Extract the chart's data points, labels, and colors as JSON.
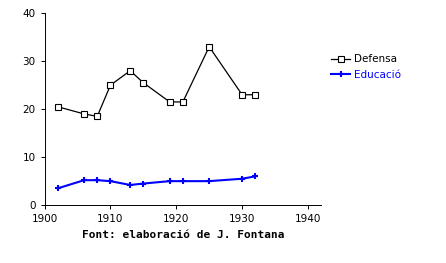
{
  "defensa_x": [
    1902,
    1906,
    1908,
    1910,
    1913,
    1915,
    1919,
    1921,
    1925,
    1930,
    1932
  ],
  "defensa_y": [
    20.5,
    19.0,
    18.5,
    25.0,
    28.0,
    25.5,
    21.5,
    21.5,
    33.0,
    23.0,
    23.0
  ],
  "educacio_x": [
    1902,
    1906,
    1908,
    1910,
    1913,
    1915,
    1919,
    1921,
    1925,
    1930,
    1932
  ],
  "educacio_y": [
    3.5,
    5.2,
    5.2,
    5.0,
    4.2,
    4.5,
    5.0,
    5.0,
    5.0,
    5.5,
    6.0
  ],
  "xlim": [
    1900,
    1942
  ],
  "ylim": [
    0,
    40
  ],
  "xticks": [
    1900,
    1910,
    1920,
    1930,
    1940
  ],
  "yticks": [
    0,
    10,
    20,
    30,
    40
  ],
  "legend_defensa": "Defensa",
  "legend_educacio": "Educació",
  "caption": "Font: elaboració de J. Fontana",
  "defensa_color": "black",
  "educacio_color": "blue",
  "background_color": "#ffffff"
}
